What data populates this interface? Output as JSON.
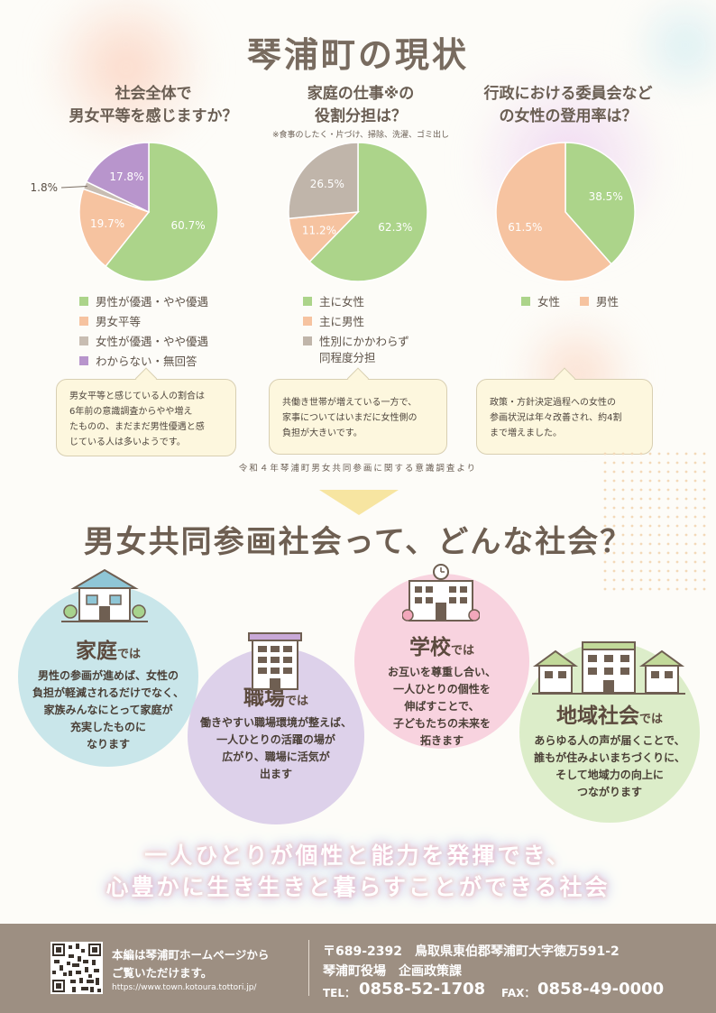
{
  "title": "琴浦町の現状",
  "survey_note": "令和４年琴浦町男女共同参画に関する意識調査より",
  "chart_data": [
    {
      "type": "pie",
      "title": "社会全体で\n男女平等を感じますか？",
      "categories": [
        "男性が優遇・やや優遇",
        "男女平等",
        "女性が優遇・やや優遇",
        "わからない・無回答"
      ],
      "values": [
        60.7,
        19.7,
        1.8,
        17.8
      ],
      "labels": [
        "60.7%",
        "19.7%",
        "1.8%",
        "17.8%"
      ],
      "colors": [
        "#acd48a",
        "#f6c3a0",
        "#c8bdb2",
        "#b895cc"
      ]
    },
    {
      "type": "pie",
      "title": "家庭の仕事※の\n役割分担は？",
      "note": "※食事のしたく・片づけ、掃除、洗濯、ゴミ出し",
      "categories": [
        "主に女性",
        "主に男性",
        "性別にかかわらず同程度分担"
      ],
      "values": [
        62.3,
        11.2,
        26.5
      ],
      "labels": [
        "62.3%",
        "11.2%",
        "26.5%"
      ],
      "colors": [
        "#acd48a",
        "#f6c3a0",
        "#c0b5aa"
      ]
    },
    {
      "type": "pie",
      "title": "行政における委員会など\nの女性の登用率は？",
      "categories": [
        "女性",
        "男性"
      ],
      "values": [
        38.5,
        61.5
      ],
      "labels": [
        "38.5%",
        "61.5%"
      ],
      "colors": [
        "#acd48a",
        "#f6c3a0"
      ]
    }
  ],
  "legend1": [
    "男性が優遇・やや優遇",
    "男女平等",
    "女性が優遇・やや優遇",
    "わからない・無回答"
  ],
  "legend2": [
    "主に女性",
    "主に男性",
    "性別にかかわらず\n同程度分担"
  ],
  "legend3": [
    "女性",
    "男性"
  ],
  "bubbles": [
    "男女平等と感じている人の割合は\n6年前の意識調査からやや増え\nたものの、まだまだ男性優遇と感\nじている人は多いようです。",
    "共働き世帯が増えている一方で、\n家事についてはいまだに女性側の\n負担が大きいです。",
    "政策・方針決定過程への女性の\n参画状況は年々改善され、約4割\nまで増えました。"
  ],
  "section2_title": "男女共同参画社会って、どんな社会？",
  "scenes": [
    {
      "head": "家庭",
      "suffix": "では",
      "body": "男性の参画が進めば、女性の\n負担が軽減されるだけでなく、\n家族みんなにとって家庭が\n充実したものに\nなります"
    },
    {
      "head": "職場",
      "suffix": "では",
      "body": "働きやすい職場環境が整えば、\n一人ひとりの活躍の場が\n広がり、職場に活気が\n出ます"
    },
    {
      "head": "学校",
      "suffix": "では",
      "body": "お互いを尊重し合い、\n一人ひとりの個性を\n伸ばすことで、\n子どもたちの未来を\n拓きます"
    },
    {
      "head": "地域社会",
      "suffix": "では",
      "body": "あらゆる人の声が届くことで、\n誰もが住みよいまちづくりに、\nそして地域力の向上に\nつながります"
    }
  ],
  "slogan": [
    "一人ひとりが個性と能力を発揮でき、",
    "心豊かに生き生きと暮らすことができる社会"
  ],
  "footer": {
    "hp_text": [
      "本編は琴浦町ホームページから",
      "ご覧いただけます。"
    ],
    "url": "https://www.town.kotoura.tottori.jp/",
    "address": "〒689-2392　鳥取県東伯郡琴浦町大字徳万591-2",
    "office": "琴浦町役場　企画政策課",
    "tel_label": "TEL：",
    "tel": "0858-52-1708",
    "fax_label": "FAX：",
    "fax": "0858-49-0000"
  }
}
